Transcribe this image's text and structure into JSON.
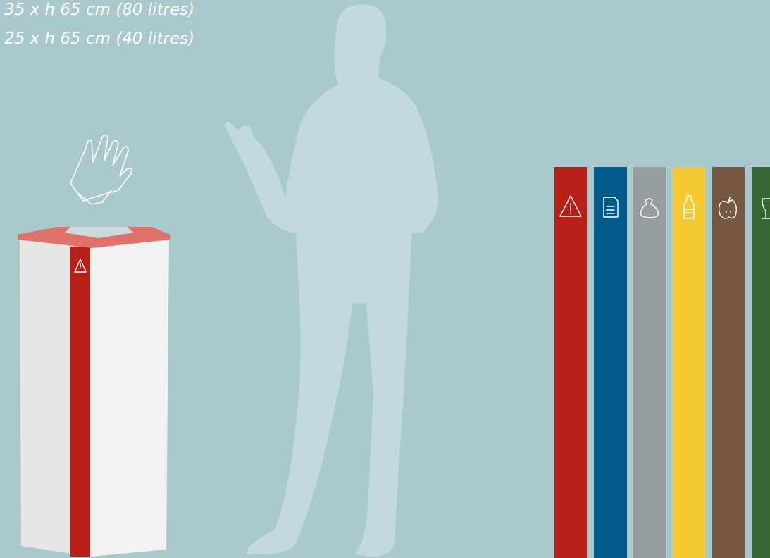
{
  "specs": [
    "35 x h 65 cm (80 litres)",
    "25 x h 65 cm (40 litres)"
  ]
}
